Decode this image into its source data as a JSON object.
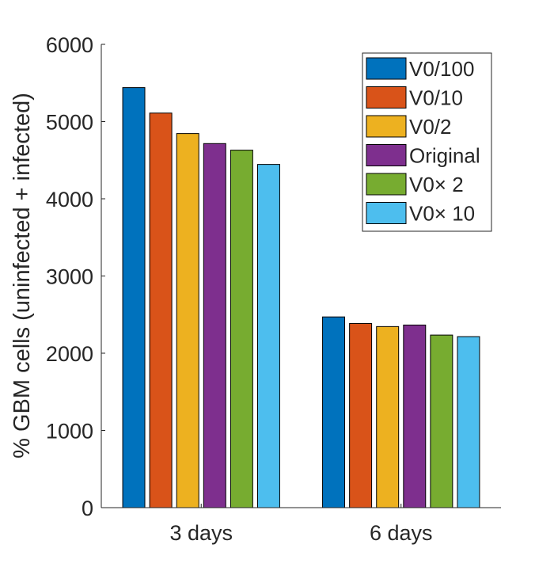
{
  "chart_data": {
    "type": "bar",
    "title": "",
    "xlabel": "",
    "ylabel": "% GBM cells (uninfected + infected)",
    "categories": [
      "3 days",
      "6 days"
    ],
    "ylim": [
      0,
      6000
    ],
    "yticks": [
      0,
      1000,
      2000,
      3000,
      4000,
      5000,
      6000
    ],
    "grid": false,
    "legend_position": "top-right",
    "series": [
      {
        "name": "V0/100",
        "color": "#0072BD",
        "values": [
          5440,
          2470
        ]
      },
      {
        "name": "V0/10",
        "color": "#D95319",
        "values": [
          5110,
          2385
        ]
      },
      {
        "name": "V0/2",
        "color": "#EDB120",
        "values": [
          4845,
          2345
        ]
      },
      {
        "name": "Original",
        "color": "#7E2F8E",
        "values": [
          4715,
          2365
        ]
      },
      {
        "name": "V0× 2",
        "color": "#77AC30",
        "values": [
          4630,
          2235
        ]
      },
      {
        "name": "V0× 10",
        "color": "#4DBEEE",
        "values": [
          4445,
          2215
        ]
      }
    ]
  }
}
